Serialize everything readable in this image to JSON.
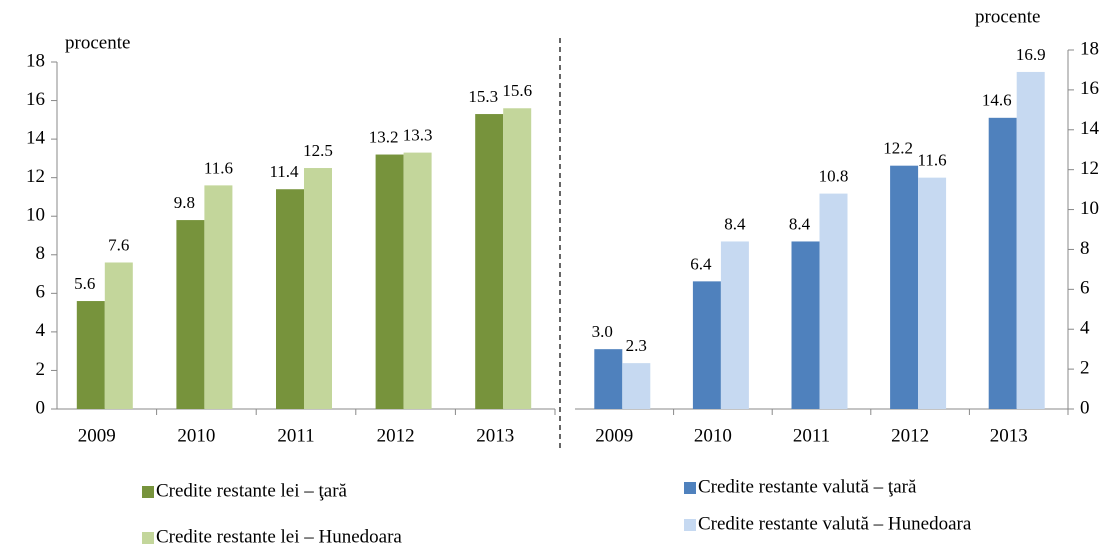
{
  "chart_data": [
    {
      "type": "bar",
      "y_label": "procente",
      "axis_side": "left",
      "categories": [
        "2009",
        "2010",
        "2011",
        "2012",
        "2013"
      ],
      "series": [
        {
          "name": "Credite restante lei – ţară",
          "color": "#77933c",
          "values": [
            5.6,
            9.8,
            11.4,
            13.2,
            15.3
          ]
        },
        {
          "name": "Credite restante lei – Hunedoara",
          "color": "#c3d69b",
          "values": [
            7.6,
            11.6,
            12.5,
            13.3,
            15.6
          ]
        }
      ],
      "ylim": [
        0,
        18
      ],
      "yticks": [
        0,
        2,
        4,
        6,
        8,
        10,
        12,
        14,
        16,
        18
      ]
    },
    {
      "type": "bar",
      "y_label": "procente",
      "axis_side": "right",
      "categories": [
        "2009",
        "2010",
        "2011",
        "2012",
        "2013"
      ],
      "series": [
        {
          "name": "Credite restante valută – ţară",
          "color": "#4f81bd",
          "values": [
            3.0,
            6.4,
            8.4,
            12.2,
            14.6
          ],
          "value_labels": [
            "3.0",
            "6.4",
            "8.4",
            "12.2",
            "14.6"
          ]
        },
        {
          "name": "Credite restante valută – Hunedoara",
          "color": "#c6d9f1",
          "values": [
            2.3,
            8.4,
            10.8,
            11.6,
            16.9
          ]
        }
      ],
      "ylim": [
        0,
        18
      ],
      "yticks": [
        0,
        2,
        4,
        6,
        8,
        10,
        12,
        14,
        16,
        18
      ]
    }
  ]
}
